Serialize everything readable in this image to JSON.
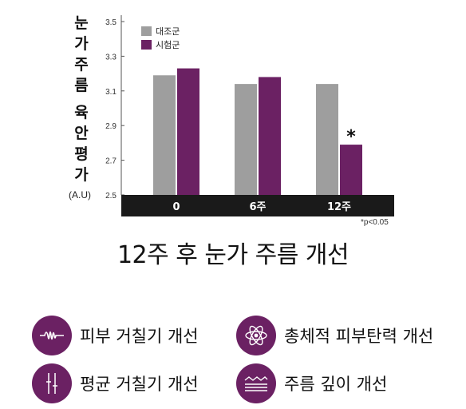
{
  "chart_data": {
    "type": "bar",
    "ylabel": "눈가주름 육안평가",
    "yunit": "(A.U)",
    "ylim": [
      2.5,
      3.5
    ],
    "yticks": [
      "3.5",
      "3.3",
      "3.1",
      "2.9",
      "2.7",
      "2.5"
    ],
    "categories": [
      "0",
      "6주",
      "12주"
    ],
    "series": [
      {
        "name": "대조군",
        "color": "#9e9e9e",
        "values": [
          3.19,
          3.14,
          3.14
        ]
      },
      {
        "name": "시험군",
        "color": "#6b2163",
        "values": [
          3.23,
          3.18,
          2.79
        ]
      }
    ],
    "annotation": {
      "text": "*",
      "category": "12주",
      "series": "시험군"
    },
    "footnote": "*p<0.05",
    "legend_position": "top-left",
    "grid": false
  },
  "headline": "12주 후 눈가 주름 개선",
  "features": [
    {
      "icon": "wave-icon",
      "label": "피부 거칠기 개선"
    },
    {
      "icon": "atom-icon",
      "label": "총체적 피부탄력 개선"
    },
    {
      "icon": "line-gauge-icon",
      "label": "평균 거칠기 개선"
    },
    {
      "icon": "wrinkle-layer-icon",
      "label": "주름 깊이 개선"
    }
  ],
  "colors": {
    "accent": "#6b2163",
    "control": "#9e9e9e",
    "axis_bar": "#1a1a1a"
  }
}
